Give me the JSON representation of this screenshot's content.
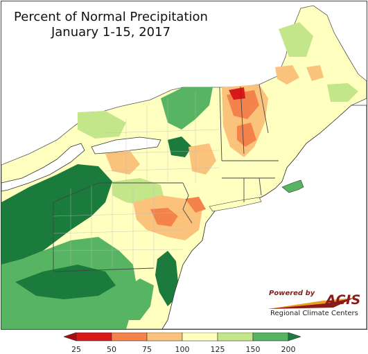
{
  "map": {
    "title_line1": "Percent of Normal Precipitation",
    "title_line2": "January 1-15, 2017"
  },
  "logo": {
    "powered_by": "Powered by",
    "acis": "ACIS",
    "subtitle": "Regional Climate Centers"
  },
  "legend": {
    "ticks": [
      "25",
      "50",
      "75",
      "100",
      "125",
      "150",
      "200"
    ],
    "bins": [
      {
        "from": 25,
        "to": 50,
        "color": "#d7191c"
      },
      {
        "from": 50,
        "to": 75,
        "color": "#f4834b"
      },
      {
        "from": 75,
        "to": 100,
        "color": "#fbc27c"
      },
      {
        "from": 100,
        "to": 125,
        "color": "#ffffc0"
      },
      {
        "from": 125,
        "to": 150,
        "color": "#c3e68a"
      },
      {
        "from": 150,
        "to": 200,
        "color": "#57b462"
      }
    ],
    "under_color": "#a50f15",
    "over_color": "#1a7b3c"
  }
}
